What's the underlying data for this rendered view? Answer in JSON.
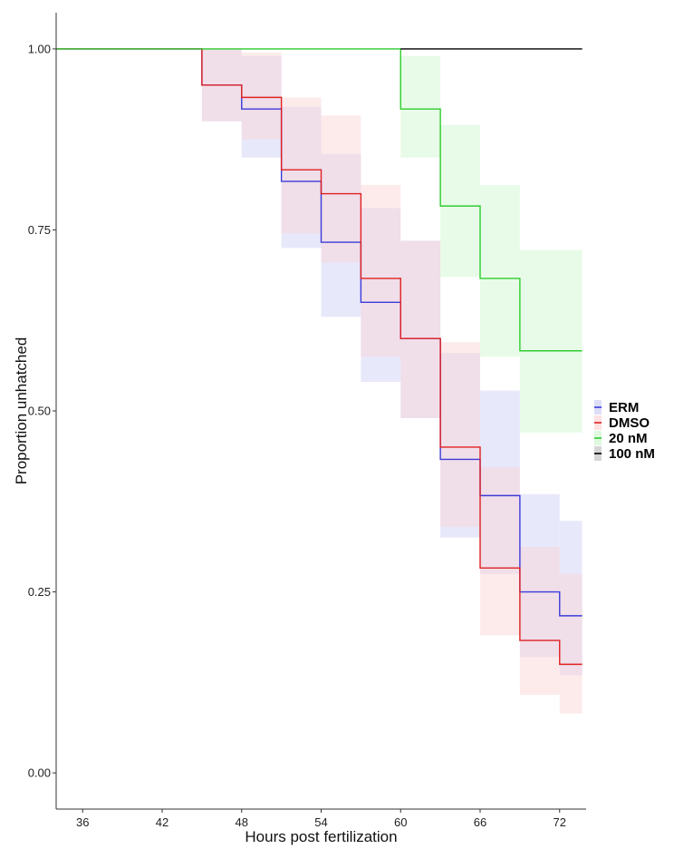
{
  "chart_data": {
    "type": "line",
    "subtype": "kaplan-meier step curve with confidence bands",
    "title": "",
    "xlabel": "Hours post fertilization",
    "ylabel": "Proportion unhatched",
    "xlim": [
      34,
      74
    ],
    "ylim": [
      -0.05,
      1.05
    ],
    "x_ticks": [
      36,
      42,
      48,
      54,
      60,
      66,
      72
    ],
    "x_tick_labels": [
      "36",
      "42",
      "48",
      "54",
      "60",
      "66",
      "72"
    ],
    "y_ticks": [
      0.0,
      0.25,
      0.5,
      0.75,
      1.0
    ],
    "y_tick_labels": [
      "0.00",
      "0.25",
      "0.50",
      "0.75",
      "1.00"
    ],
    "legend_position": "right",
    "grid": false,
    "series": [
      {
        "name": "ERM",
        "color": "#3b3bd9",
        "band_color": "#c8c8f5",
        "x": [
          34,
          45,
          48,
          51,
          54,
          57,
          60,
          63,
          66,
          69,
          72
        ],
        "y": [
          1.0,
          0.95,
          0.917,
          0.817,
          0.733,
          0.65,
          0.6,
          0.433,
          0.383,
          0.25,
          0.217
        ],
        "lower": [
          1.0,
          0.9,
          0.85,
          0.725,
          0.63,
          0.54,
          0.49,
          0.325,
          0.275,
          0.16,
          0.135
        ],
        "upper": [
          1.0,
          1.0,
          0.99,
          0.92,
          0.855,
          0.78,
          0.735,
          0.58,
          0.528,
          0.385,
          0.348
        ]
      },
      {
        "name": "DMSO",
        "color": "#e02020",
        "band_color": "#fbcfcf",
        "x": [
          34,
          45,
          48,
          51,
          54,
          57,
          60,
          63,
          66,
          69,
          72
        ],
        "y": [
          1.0,
          0.95,
          0.933,
          0.833,
          0.8,
          0.683,
          0.6,
          0.45,
          0.283,
          0.183,
          0.15
        ],
        "lower": [
          1.0,
          0.9,
          0.875,
          0.745,
          0.705,
          0.575,
          0.49,
          0.34,
          0.19,
          0.108,
          0.082
        ],
        "upper": [
          1.0,
          1.0,
          0.995,
          0.933,
          0.908,
          0.812,
          0.735,
          0.595,
          0.422,
          0.312,
          0.275
        ]
      },
      {
        "name": "20 nM",
        "color": "#2ecc2e",
        "band_color": "#c8f5c8",
        "x": [
          34,
          60,
          63,
          66,
          69
        ],
        "y": [
          1.0,
          0.917,
          0.783,
          0.683,
          0.583
        ],
        "lower": [
          1.0,
          0.85,
          0.685,
          0.575,
          0.47
        ],
        "upper": [
          1.0,
          0.99,
          0.895,
          0.812,
          0.722
        ]
      },
      {
        "name": "100 nM",
        "color": "#000000",
        "band_color": "#bbbbbb",
        "x": [
          60
        ],
        "y": [
          1.0
        ],
        "lower": [
          1.0
        ],
        "upper": [
          1.0
        ]
      }
    ]
  }
}
